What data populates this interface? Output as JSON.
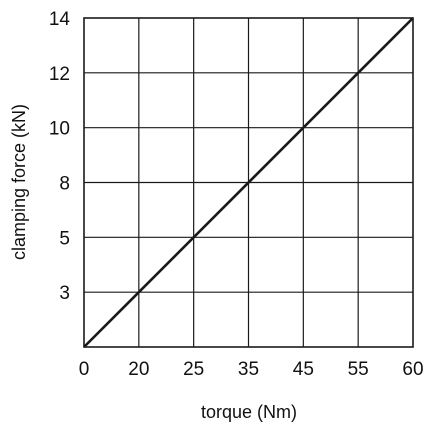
{
  "chart_data": {
    "type": "line",
    "xlabel": "torque (Nm)",
    "ylabel": "clamping force (kN)",
    "x_ticks": [
      "0",
      "20",
      "25",
      "35",
      "45",
      "55",
      "60"
    ],
    "y_ticks": [
      "3",
      "5",
      "8",
      "10",
      "12",
      "14"
    ],
    "grid": true,
    "series": [
      {
        "x": [
          "0",
          "60"
        ],
        "y": [
          "0",
          "14"
        ]
      }
    ],
    "colors": {
      "line": "#1a1a1a",
      "grid": "#1a1a1a",
      "frame": "#1a1a1a"
    }
  }
}
